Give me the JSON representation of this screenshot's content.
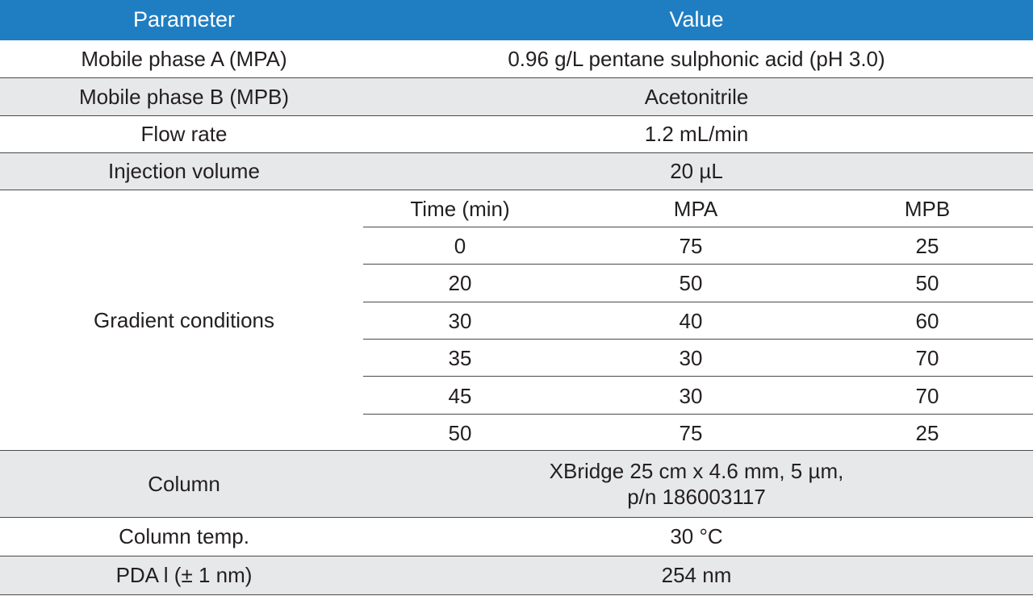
{
  "header": {
    "parameter": "Parameter",
    "value": "Value"
  },
  "rows": [
    {
      "parameter": "Mobile phase A (MPA)",
      "value": "0.96 g/L pentane sulphonic acid (pH 3.0)"
    },
    {
      "parameter": "Mobile phase B (MPB)",
      "value": "Acetonitrile"
    },
    {
      "parameter": "Flow rate",
      "value": "1.2 mL/min"
    },
    {
      "parameter": "Injection volume",
      "value": "20 µL"
    }
  ],
  "gradient": {
    "parameter": "Gradient conditions",
    "columns": [
      "Time (min)",
      "MPA",
      "MPB"
    ],
    "rows": [
      [
        "0",
        "75",
        "25"
      ],
      [
        "20",
        "50",
        "50"
      ],
      [
        "30",
        "40",
        "60"
      ],
      [
        "35",
        "30",
        "70"
      ],
      [
        "45",
        "30",
        "70"
      ],
      [
        "50",
        "75",
        "25"
      ]
    ]
  },
  "column": {
    "parameter": "Column",
    "value_line1": "XBridge 25 cm x 4.6 mm, 5 µm,",
    "value_line2": "p/n 186003117"
  },
  "rows_after": [
    {
      "parameter": "Column temp.",
      "value": "30 °C"
    },
    {
      "parameter": "PDA l (± 1 nm)",
      "value": "254 nm"
    }
  ],
  "colors": {
    "header_bg": "#1f7ec2",
    "header_text": "#ffffff",
    "shaded_row": "#e7e8e9",
    "text": "#231f20",
    "rule": "#4a4a4a"
  }
}
